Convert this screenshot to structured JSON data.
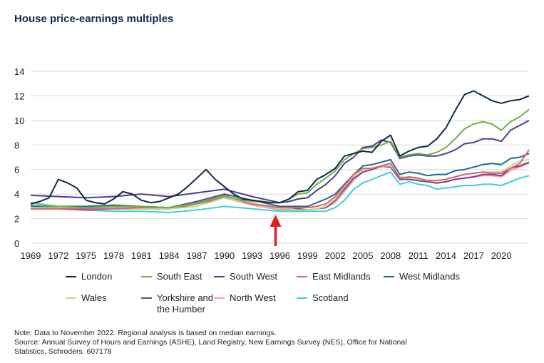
{
  "title": "House price-earnings multiples",
  "note_lines": [
    "Note: Data to November 2022. Regional analysis is based on median earnings.",
    "Source: Annual Survey of Hours and Earnings (ASHE), Land Registry, New Earnings Survey (NES), Office for National",
    "Statistics, Schroders. 607178"
  ],
  "annotation": {
    "type": "arrow",
    "color": "#e31b23",
    "points_to_year": 1996
  },
  "chart_data": {
    "type": "line",
    "title": "House price-earnings multiples",
    "xlabel": "",
    "ylabel": "",
    "xlim": [
      1969,
      2023
    ],
    "ylim": [
      0,
      14
    ],
    "x_ticks": [
      1969,
      1972,
      1975,
      1978,
      1981,
      1984,
      1987,
      1990,
      1993,
      1996,
      1999,
      2002,
      2005,
      2008,
      2011,
      2014,
      2017,
      2020
    ],
    "y_ticks": [
      0,
      2,
      4,
      6,
      8,
      10,
      12,
      14
    ],
    "grid": "horizontal",
    "legend_position": "bottom",
    "series": [
      {
        "name": "London",
        "color": "#0e2a47",
        "x": [
          1969,
          1970,
          1971,
          1972,
          1973,
          1974,
          1975,
          1976,
          1977,
          1978,
          1979,
          1980,
          1981,
          1982,
          1983,
          1984,
          1985,
          1986,
          1987,
          1988,
          1989,
          1990,
          1991,
          1992,
          1993,
          1994,
          1995,
          1996,
          1997,
          1998,
          1999,
          2000,
          2001,
          2002,
          2003,
          2004,
          2005,
          2006,
          2007,
          2008,
          2009,
          2010,
          2011,
          2012,
          2013,
          2014,
          2015,
          2016,
          2017,
          2018,
          2019,
          2020,
          2021,
          2022,
          2023
        ],
        "values": [
          3.2,
          3.4,
          3.7,
          5.2,
          4.9,
          4.5,
          3.5,
          3.3,
          3.2,
          3.6,
          4.2,
          4.0,
          3.5,
          3.3,
          3.4,
          3.7,
          4.0,
          4.6,
          5.3,
          6.0,
          5.2,
          4.6,
          4.0,
          3.6,
          3.5,
          3.4,
          3.3,
          3.3,
          3.6,
          4.2,
          4.3,
          5.2,
          5.6,
          6.1,
          7.1,
          7.3,
          7.5,
          7.4,
          8.3,
          8.8,
          7.1,
          7.5,
          7.8,
          7.9,
          8.5,
          9.4,
          10.8,
          12.1,
          12.4,
          12.0,
          11.6,
          11.4,
          11.6,
          11.7,
          12.0
        ]
      },
      {
        "name": "South East",
        "color": "#6cb33f",
        "x": [
          1969,
          1972,
          1975,
          1978,
          1981,
          1984,
          1987,
          1990,
          1993,
          1996,
          1997,
          1998,
          1999,
          2000,
          2001,
          2002,
          2003,
          2004,
          2005,
          2006,
          2007,
          2008,
          2009,
          2010,
          2011,
          2012,
          2013,
          2014,
          2015,
          2016,
          2017,
          2018,
          2019,
          2020,
          2021,
          2022,
          2023
        ],
        "values": [
          3.1,
          3.0,
          2.9,
          3.0,
          3.0,
          2.9,
          3.2,
          3.8,
          3.4,
          3.3,
          3.6,
          4.0,
          4.1,
          4.8,
          5.3,
          5.9,
          6.8,
          7.3,
          7.7,
          7.8,
          8.0,
          8.3,
          7.0,
          7.2,
          7.3,
          7.2,
          7.4,
          7.8,
          8.5,
          9.3,
          9.7,
          9.9,
          9.7,
          9.2,
          9.9,
          10.3,
          10.9
        ]
      },
      {
        "name": "South West",
        "color": "#4b3f8c",
        "x": [
          1969,
          1972,
          1975,
          1978,
          1981,
          1984,
          1987,
          1990,
          1993,
          1996,
          1997,
          1998,
          1999,
          2000,
          2001,
          2002,
          2003,
          2004,
          2005,
          2006,
          2007,
          2008,
          2009,
          2010,
          2011,
          2012,
          2013,
          2014,
          2015,
          2016,
          2017,
          2018,
          2019,
          2020,
          2021,
          2022,
          2023
        ],
        "values": [
          3.9,
          3.8,
          3.7,
          3.8,
          4.0,
          3.8,
          4.1,
          4.4,
          3.8,
          3.3,
          3.4,
          3.6,
          3.7,
          4.3,
          4.8,
          5.5,
          6.5,
          7.0,
          7.8,
          7.9,
          8.4,
          8.2,
          6.9,
          7.1,
          7.2,
          7.1,
          7.1,
          7.3,
          7.6,
          8.1,
          8.2,
          8.5,
          8.5,
          8.3,
          9.2,
          9.6,
          10.0
        ]
      },
      {
        "name": "East Midlands",
        "color": "#e0616a",
        "x": [
          1969,
          1972,
          1975,
          1978,
          1981,
          1984,
          1987,
          1990,
          1993,
          1996,
          1997,
          1998,
          1999,
          2000,
          2001,
          2002,
          2003,
          2004,
          2005,
          2006,
          2007,
          2008,
          2009,
          2010,
          2011,
          2012,
          2013,
          2014,
          2015,
          2016,
          2017,
          2018,
          2019,
          2020,
          2021,
          2022,
          2023
        ],
        "values": [
          2.8,
          2.8,
          2.8,
          2.8,
          2.9,
          2.9,
          3.3,
          3.9,
          3.2,
          2.9,
          2.9,
          2.9,
          2.9,
          3.0,
          3.2,
          3.8,
          4.7,
          5.6,
          6.1,
          6.1,
          6.3,
          6.5,
          5.3,
          5.4,
          5.3,
          5.1,
          5.1,
          5.2,
          5.4,
          5.6,
          5.7,
          5.8,
          5.7,
          5.7,
          6.1,
          6.5,
          7.6
        ]
      },
      {
        "name": "West Midlands",
        "color": "#1d6a96",
        "x": [
          1969,
          1972,
          1975,
          1978,
          1981,
          1984,
          1987,
          1990,
          1993,
          1996,
          1997,
          1998,
          1999,
          2000,
          2001,
          2002,
          2003,
          2004,
          2005,
          2006,
          2007,
          2008,
          2009,
          2010,
          2011,
          2012,
          2013,
          2014,
          2015,
          2016,
          2017,
          2018,
          2019,
          2020,
          2021,
          2022,
          2023
        ],
        "values": [
          3.0,
          3.0,
          3.0,
          3.1,
          3.0,
          2.9,
          3.4,
          4.0,
          3.5,
          3.0,
          3.0,
          3.0,
          3.0,
          3.3,
          3.6,
          4.0,
          4.8,
          5.6,
          6.3,
          6.4,
          6.6,
          6.8,
          5.6,
          5.8,
          5.7,
          5.5,
          5.6,
          5.6,
          5.9,
          6.0,
          6.2,
          6.4,
          6.5,
          6.4,
          6.9,
          7.0,
          7.3
        ]
      },
      {
        "name": "Wales",
        "color": "#c2da8a",
        "x": [
          1969,
          1972,
          1975,
          1978,
          1981,
          1984,
          1987,
          1990,
          1993,
          1996,
          1997,
          1998,
          1999,
          2000,
          2001,
          2002,
          2003,
          2004,
          2005,
          2006,
          2007,
          2008,
          2009,
          2010,
          2011,
          2012,
          2013,
          2014,
          2015,
          2016,
          2017,
          2018,
          2019,
          2020,
          2021,
          2022,
          2023
        ],
        "values": [
          3.0,
          2.9,
          2.8,
          2.8,
          2.8,
          2.8,
          3.0,
          3.7,
          3.2,
          2.8,
          2.8,
          2.7,
          2.7,
          2.8,
          3.0,
          3.6,
          4.6,
          5.5,
          6.0,
          6.1,
          6.3,
          6.3,
          5.4,
          5.3,
          5.2,
          5.1,
          5.1,
          5.2,
          5.4,
          5.6,
          5.7,
          5.8,
          5.8,
          5.8,
          6.3,
          6.7,
          6.8
        ]
      },
      {
        "name": "Yorkshire and the Humber",
        "color": "#7b3f8c",
        "x": [
          1969,
          1972,
          1975,
          1978,
          1981,
          1984,
          1987,
          1990,
          1993,
          1996,
          1997,
          1998,
          1999,
          2000,
          2001,
          2002,
          2003,
          2004,
          2005,
          2006,
          2007,
          2008,
          2009,
          2010,
          2011,
          2012,
          2013,
          2014,
          2015,
          2016,
          2017,
          2018,
          2019,
          2020,
          2021,
          2022,
          2023
        ],
        "values": [
          2.8,
          2.8,
          2.7,
          2.8,
          2.8,
          2.8,
          3.2,
          3.7,
          3.2,
          2.8,
          2.8,
          2.8,
          2.7,
          2.8,
          2.9,
          3.5,
          4.4,
          5.3,
          5.8,
          6.0,
          6.3,
          6.2,
          5.2,
          5.2,
          5.1,
          5.0,
          4.9,
          5.0,
          5.2,
          5.3,
          5.4,
          5.6,
          5.6,
          5.5,
          6.1,
          6.3,
          6.6
        ]
      },
      {
        "name": "North West",
        "color": "#f2a7a7",
        "x": [
          1969,
          1972,
          1975,
          1978,
          1981,
          1984,
          1987,
          1990,
          1993,
          1996,
          1997,
          1998,
          1999,
          2000,
          2001,
          2002,
          2003,
          2004,
          2005,
          2006,
          2007,
          2008,
          2009,
          2010,
          2011,
          2012,
          2013,
          2014,
          2015,
          2016,
          2017,
          2018,
          2019,
          2020,
          2021,
          2022,
          2023
        ],
        "values": [
          3.1,
          3.0,
          2.9,
          2.9,
          2.9,
          2.8,
          3.2,
          3.7,
          3.1,
          2.7,
          2.7,
          2.7,
          2.7,
          2.8,
          2.9,
          3.3,
          4.2,
          5.1,
          5.8,
          6.0,
          6.2,
          6.2,
          5.2,
          5.2,
          5.1,
          5.0,
          4.9,
          5.0,
          5.2,
          5.3,
          5.4,
          5.5,
          5.5,
          5.4,
          5.9,
          6.2,
          6.5
        ]
      },
      {
        "name": "Scotland",
        "color": "#3ecfdf",
        "x": [
          1969,
          1972,
          1975,
          1978,
          1981,
          1984,
          1987,
          1990,
          1993,
          1996,
          1997,
          1998,
          1999,
          2000,
          2001,
          2002,
          2003,
          2004,
          2005,
          2006,
          2007,
          2008,
          2009,
          2010,
          2011,
          2012,
          2013,
          2014,
          2015,
          2016,
          2017,
          2018,
          2019,
          2020,
          2021,
          2022,
          2023
        ],
        "values": [
          3.3,
          3.0,
          2.7,
          2.6,
          2.6,
          2.5,
          2.7,
          3.0,
          2.8,
          2.6,
          2.6,
          2.6,
          2.6,
          2.6,
          2.6,
          2.9,
          3.5,
          4.4,
          4.9,
          5.2,
          5.5,
          5.8,
          4.8,
          5.0,
          4.8,
          4.7,
          4.4,
          4.5,
          4.6,
          4.7,
          4.7,
          4.8,
          4.8,
          4.7,
          5.0,
          5.3,
          5.5
        ]
      }
    ]
  }
}
